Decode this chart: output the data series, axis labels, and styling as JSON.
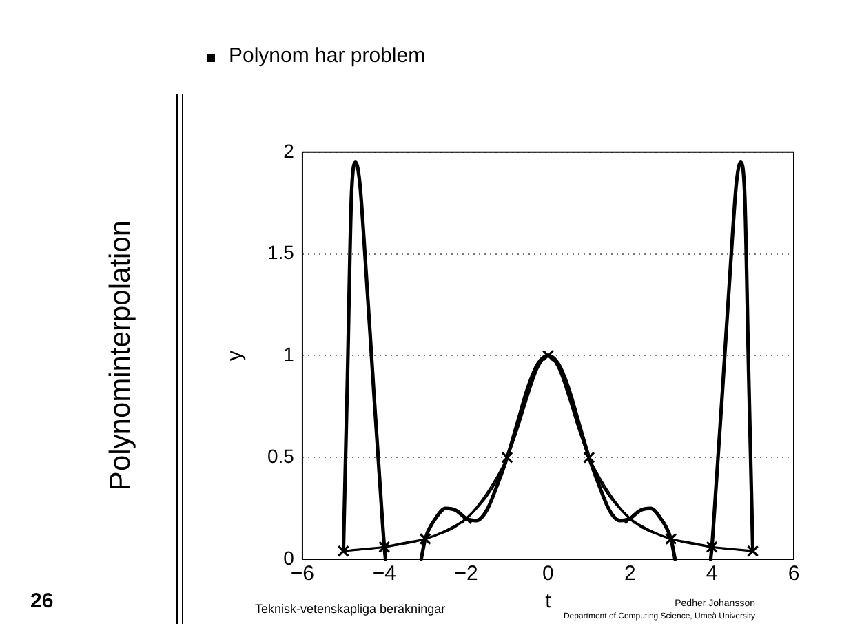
{
  "chart_data": {
    "type": "line",
    "title": "Polynominterpolation",
    "subtitle": "Polynom har problem",
    "xlabel": "t",
    "ylabel": "y",
    "annotations": [
      "26",
      "Teknisk-vetenskapliga beräkningar",
      "Pedher Johansson",
      "Department of Computing Science, Umeå University"
    ],
    "xlim": [
      -6,
      6
    ],
    "xticks": [
      -6,
      -4,
      -2,
      0,
      2,
      4,
      6
    ],
    "ylim": [
      0,
      2
    ],
    "yticks": [
      0,
      0.5,
      1,
      1.5,
      2
    ],
    "grid": "y",
    "legend": false,
    "series": [
      {
        "type": "line",
        "color": "#000000",
        "marker": "cross",
        "line_style": "solid",
        "x": [
          -5,
          -4,
          -3,
          -2,
          -1,
          0,
          1,
          2,
          3,
          4,
          5
        ],
        "values": [
          0.04,
          0.06,
          0.1,
          0.2,
          0.5,
          1,
          0.5,
          0.2,
          0.1,
          0.06,
          0.04
        ]
      },
      {
        "type": "line",
        "color": "#000000",
        "marker": "none",
        "line_style": "solid",
        "x": [
          -5,
          -4.5,
          -4,
          -3.5,
          -3,
          -2.5,
          -2,
          -1.75,
          -1.5,
          -1.25,
          -1,
          -0.75,
          -0.5,
          -0.25,
          0,
          0.25,
          0.5,
          0.75,
          1,
          1.25,
          1.5,
          1.75,
          2,
          2.5,
          3,
          3.5,
          4,
          4.5,
          5
        ],
        "values": [
          0.04,
          0.05,
          0.06,
          0.08,
          0.1,
          0.14,
          0.2,
          0.25,
          0.31,
          0.39,
          0.5,
          0.64,
          0.8,
          0.94,
          1,
          0.94,
          0.8,
          0.64,
          0.5,
          0.39,
          0.31,
          0.25,
          0.2,
          0.14,
          0.1,
          0.08,
          0.06,
          0.05,
          0.04
        ]
      },
      {
        "type": "line",
        "color": "#000000",
        "marker": "none",
        "line_style": "solid",
        "x": [
          -5,
          -4.9,
          -4.8,
          -4.7,
          -4.6,
          -4.5,
          -4.25,
          -4.1,
          -4,
          -3.97,
          -3.5,
          -3.1,
          -3,
          -2.75,
          -2.5,
          -2.25,
          -2,
          -1.75,
          -1.5,
          -1.25,
          -1,
          -0.75,
          -0.5,
          -0.25,
          0,
          0.25,
          0.5,
          0.75,
          1,
          1.25,
          1.5,
          1.75,
          2,
          2.25,
          2.5,
          2.75,
          3,
          3.1,
          3.5,
          3.97,
          4,
          4.1,
          4.25,
          4.5,
          4.6,
          4.7,
          4.8,
          4.9,
          5
        ],
        "values": [
          0.04,
          0.9,
          1.8,
          1.95,
          1.85,
          1.58,
          0.8,
          0.35,
          0.06,
          0,
          null,
          0,
          0.1,
          0.2,
          0.25,
          0.24,
          0.2,
          0.19,
          0.24,
          0.36,
          0.5,
          0.67,
          0.84,
          0.96,
          1,
          0.96,
          0.84,
          0.67,
          0.5,
          0.36,
          0.24,
          0.19,
          0.2,
          0.24,
          0.25,
          0.2,
          0.1,
          0,
          null,
          0,
          0.06,
          0.35,
          0.8,
          1.58,
          1.85,
          1.95,
          1.8,
          0.9,
          0.04
        ]
      }
    ]
  }
}
